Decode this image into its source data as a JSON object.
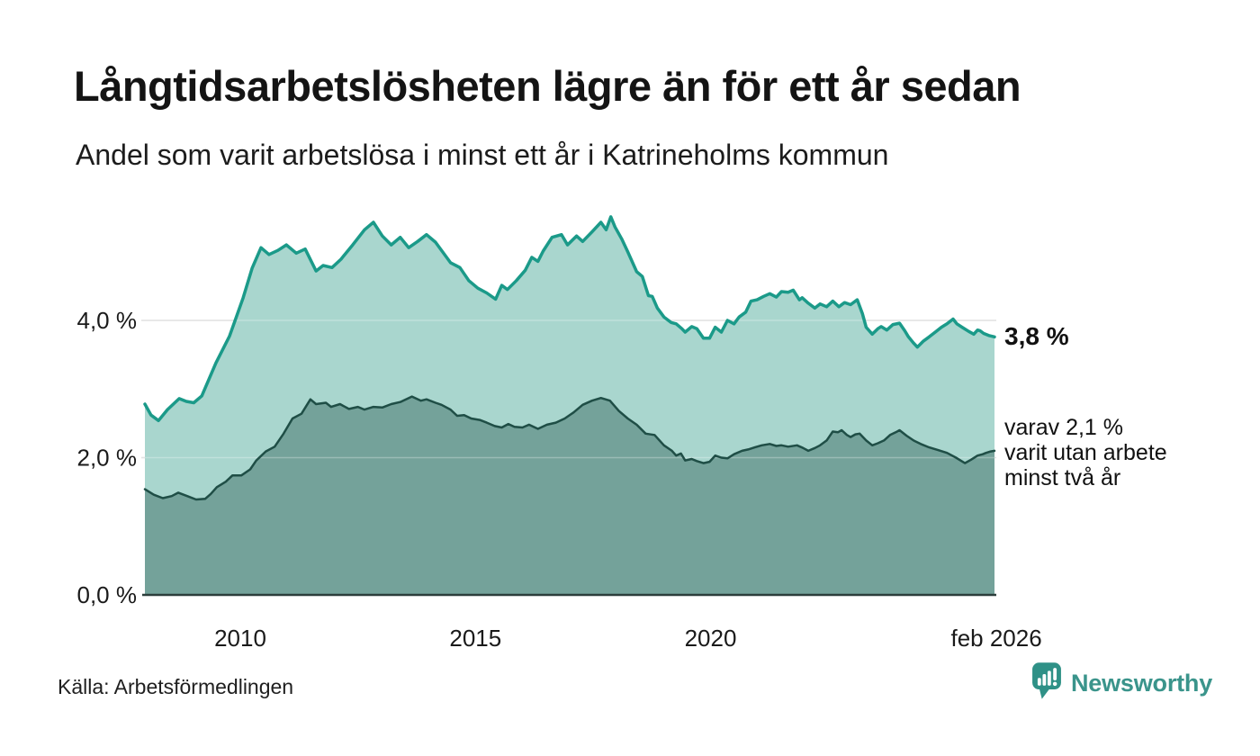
{
  "chart_data": {
    "type": "area",
    "title": "Långtidsarbetslösheten lägre än för ett år sedan",
    "subtitle": "Andel som varit arbetslösa i minst ett år i Katrineholms kommun",
    "xlabel": "",
    "ylabel": "",
    "grid": "horizontal",
    "legend_position": "none",
    "xlim": [
      2007.97,
      2026.04
    ],
    "ylim": [
      0,
      5.8
    ],
    "x_ticks": [
      {
        "label": "2010",
        "year": 2010
      },
      {
        "label": "2015",
        "year": 2015
      },
      {
        "label": "2020",
        "year": 2020
      },
      {
        "label": "feb 2026",
        "year": 2026.08
      }
    ],
    "y_ticks": [
      {
        "label": "0,0 %",
        "value": 0
      },
      {
        "label": "2,0 %",
        "value": 2
      },
      {
        "label": "4,0 %",
        "value": 4
      }
    ],
    "series": [
      {
        "name": "Andel som varit arbetslösa i minst ett år",
        "line_color": "#1b9a89",
        "fill_color": "#a9d6ce",
        "line_width": 3.5,
        "points": [
          [
            2007.97,
            2.78
          ],
          [
            2008.1,
            2.62
          ],
          [
            2008.26,
            2.54
          ],
          [
            2008.45,
            2.7
          ],
          [
            2008.7,
            2.86
          ],
          [
            2008.85,
            2.82
          ],
          [
            2009.01,
            2.8
          ],
          [
            2009.18,
            2.9
          ],
          [
            2009.48,
            3.38
          ],
          [
            2009.77,
            3.77
          ],
          [
            2010.06,
            4.33
          ],
          [
            2010.25,
            4.76
          ],
          [
            2010.44,
            5.06
          ],
          [
            2010.61,
            4.96
          ],
          [
            2010.8,
            5.02
          ],
          [
            2010.98,
            5.1
          ],
          [
            2011.19,
            4.98
          ],
          [
            2011.38,
            5.04
          ],
          [
            2011.61,
            4.72
          ],
          [
            2011.76,
            4.8
          ],
          [
            2011.95,
            4.77
          ],
          [
            2012.14,
            4.89
          ],
          [
            2012.39,
            5.1
          ],
          [
            2012.64,
            5.32
          ],
          [
            2012.83,
            5.43
          ],
          [
            2013.02,
            5.23
          ],
          [
            2013.21,
            5.1
          ],
          [
            2013.4,
            5.21
          ],
          [
            2013.58,
            5.06
          ],
          [
            2013.77,
            5.15
          ],
          [
            2013.96,
            5.25
          ],
          [
            2014.15,
            5.14
          ],
          [
            2014.47,
            4.84
          ],
          [
            2014.67,
            4.77
          ],
          [
            2014.86,
            4.58
          ],
          [
            2015.05,
            4.47
          ],
          [
            2015.24,
            4.4
          ],
          [
            2015.43,
            4.31
          ],
          [
            2015.56,
            4.51
          ],
          [
            2015.68,
            4.45
          ],
          [
            2015.87,
            4.58
          ],
          [
            2016.06,
            4.73
          ],
          [
            2016.2,
            4.92
          ],
          [
            2016.33,
            4.86
          ],
          [
            2016.44,
            5.01
          ],
          [
            2016.63,
            5.21
          ],
          [
            2016.83,
            5.25
          ],
          [
            2016.96,
            5.1
          ],
          [
            2017.15,
            5.23
          ],
          [
            2017.28,
            5.15
          ],
          [
            2017.48,
            5.29
          ],
          [
            2017.67,
            5.43
          ],
          [
            2017.78,
            5.32
          ],
          [
            2017.88,
            5.51
          ],
          [
            2017.97,
            5.36
          ],
          [
            2018.11,
            5.19
          ],
          [
            2018.24,
            5.0
          ],
          [
            2018.43,
            4.71
          ],
          [
            2018.55,
            4.64
          ],
          [
            2018.68,
            4.36
          ],
          [
            2018.76,
            4.35
          ],
          [
            2018.87,
            4.18
          ],
          [
            2019.01,
            4.05
          ],
          [
            2019.16,
            3.97
          ],
          [
            2019.27,
            3.95
          ],
          [
            2019.39,
            3.88
          ],
          [
            2019.46,
            3.83
          ],
          [
            2019.6,
            3.91
          ],
          [
            2019.71,
            3.88
          ],
          [
            2019.85,
            3.74
          ],
          [
            2019.98,
            3.74
          ],
          [
            2020.1,
            3.9
          ],
          [
            2020.23,
            3.83
          ],
          [
            2020.36,
            4.0
          ],
          [
            2020.5,
            3.95
          ],
          [
            2020.61,
            4.05
          ],
          [
            2020.75,
            4.12
          ],
          [
            2020.86,
            4.28
          ],
          [
            2020.99,
            4.3
          ],
          [
            2021.13,
            4.35
          ],
          [
            2021.26,
            4.39
          ],
          [
            2021.4,
            4.34
          ],
          [
            2021.51,
            4.42
          ],
          [
            2021.65,
            4.41
          ],
          [
            2021.76,
            4.44
          ],
          [
            2021.89,
            4.3
          ],
          [
            2021.95,
            4.33
          ],
          [
            2022.08,
            4.25
          ],
          [
            2022.22,
            4.18
          ],
          [
            2022.33,
            4.24
          ],
          [
            2022.47,
            4.2
          ],
          [
            2022.6,
            4.28
          ],
          [
            2022.73,
            4.2
          ],
          [
            2022.85,
            4.26
          ],
          [
            2022.98,
            4.23
          ],
          [
            2023.12,
            4.3
          ],
          [
            2023.23,
            4.1
          ],
          [
            2023.31,
            3.9
          ],
          [
            2023.44,
            3.8
          ],
          [
            2023.56,
            3.88
          ],
          [
            2023.63,
            3.91
          ],
          [
            2023.75,
            3.86
          ],
          [
            2023.88,
            3.94
          ],
          [
            2024.02,
            3.96
          ],
          [
            2024.13,
            3.85
          ],
          [
            2024.21,
            3.76
          ],
          [
            2024.32,
            3.67
          ],
          [
            2024.4,
            3.61
          ],
          [
            2024.53,
            3.7
          ],
          [
            2024.65,
            3.76
          ],
          [
            2024.78,
            3.83
          ],
          [
            2024.91,
            3.9
          ],
          [
            2025.03,
            3.95
          ],
          [
            2025.16,
            4.02
          ],
          [
            2025.24,
            3.95
          ],
          [
            2025.35,
            3.9
          ],
          [
            2025.49,
            3.84
          ],
          [
            2025.6,
            3.8
          ],
          [
            2025.68,
            3.86
          ],
          [
            2025.73,
            3.85
          ],
          [
            2025.81,
            3.81
          ],
          [
            2025.92,
            3.78
          ],
          [
            2026.04,
            3.76
          ]
        ]
      },
      {
        "name": "varav varit utan arbete minst två år",
        "line_color": "#1f4e46",
        "fill_color": "#74a29a",
        "line_width": 2.5,
        "points": [
          [
            2007.97,
            1.54
          ],
          [
            2008.16,
            1.46
          ],
          [
            2008.35,
            1.41
          ],
          [
            2008.54,
            1.44
          ],
          [
            2008.68,
            1.49
          ],
          [
            2008.87,
            1.44
          ],
          [
            2009.06,
            1.39
          ],
          [
            2009.25,
            1.4
          ],
          [
            2009.37,
            1.47
          ],
          [
            2009.5,
            1.57
          ],
          [
            2009.69,
            1.65
          ],
          [
            2009.83,
            1.74
          ],
          [
            2010.02,
            1.74
          ],
          [
            2010.21,
            1.83
          ],
          [
            2010.34,
            1.96
          ],
          [
            2010.54,
            2.09
          ],
          [
            2010.73,
            2.16
          ],
          [
            2010.92,
            2.35
          ],
          [
            2011.11,
            2.57
          ],
          [
            2011.3,
            2.64
          ],
          [
            2011.49,
            2.85
          ],
          [
            2011.61,
            2.78
          ],
          [
            2011.82,
            2.8
          ],
          [
            2011.93,
            2.74
          ],
          [
            2012.12,
            2.78
          ],
          [
            2012.31,
            2.71
          ],
          [
            2012.5,
            2.74
          ],
          [
            2012.64,
            2.7
          ],
          [
            2012.83,
            2.74
          ],
          [
            2013.02,
            2.73
          ],
          [
            2013.21,
            2.78
          ],
          [
            2013.4,
            2.81
          ],
          [
            2013.65,
            2.89
          ],
          [
            2013.84,
            2.83
          ],
          [
            2013.96,
            2.85
          ],
          [
            2014.15,
            2.8
          ],
          [
            2014.28,
            2.77
          ],
          [
            2014.47,
            2.7
          ],
          [
            2014.61,
            2.61
          ],
          [
            2014.76,
            2.62
          ],
          [
            2014.91,
            2.57
          ],
          [
            2015.09,
            2.55
          ],
          [
            2015.24,
            2.51
          ],
          [
            2015.41,
            2.46
          ],
          [
            2015.56,
            2.44
          ],
          [
            2015.7,
            2.49
          ],
          [
            2015.83,
            2.45
          ],
          [
            2016.0,
            2.44
          ],
          [
            2016.14,
            2.48
          ],
          [
            2016.33,
            2.42
          ],
          [
            2016.52,
            2.48
          ],
          [
            2016.71,
            2.51
          ],
          [
            2016.9,
            2.57
          ],
          [
            2017.09,
            2.66
          ],
          [
            2017.28,
            2.77
          ],
          [
            2017.48,
            2.83
          ],
          [
            2017.67,
            2.87
          ],
          [
            2017.86,
            2.83
          ],
          [
            2018.05,
            2.68
          ],
          [
            2018.24,
            2.57
          ],
          [
            2018.43,
            2.48
          ],
          [
            2018.62,
            2.35
          ],
          [
            2018.81,
            2.33
          ],
          [
            2019.01,
            2.18
          ],
          [
            2019.18,
            2.1
          ],
          [
            2019.27,
            2.03
          ],
          [
            2019.37,
            2.06
          ],
          [
            2019.46,
            1.96
          ],
          [
            2019.6,
            1.98
          ],
          [
            2019.71,
            1.95
          ],
          [
            2019.85,
            1.92
          ],
          [
            2019.98,
            1.94
          ],
          [
            2020.1,
            2.03
          ],
          [
            2020.23,
            2.0
          ],
          [
            2020.36,
            1.99
          ],
          [
            2020.5,
            2.05
          ],
          [
            2020.67,
            2.1
          ],
          [
            2020.8,
            2.12
          ],
          [
            2020.94,
            2.15
          ],
          [
            2021.09,
            2.18
          ],
          [
            2021.26,
            2.2
          ],
          [
            2021.4,
            2.17
          ],
          [
            2021.51,
            2.18
          ],
          [
            2021.65,
            2.16
          ],
          [
            2021.84,
            2.18
          ],
          [
            2021.97,
            2.14
          ],
          [
            2022.08,
            2.1
          ],
          [
            2022.22,
            2.14
          ],
          [
            2022.33,
            2.18
          ],
          [
            2022.47,
            2.25
          ],
          [
            2022.6,
            2.38
          ],
          [
            2022.71,
            2.37
          ],
          [
            2022.79,
            2.4
          ],
          [
            2022.9,
            2.33
          ],
          [
            2022.98,
            2.3
          ],
          [
            2023.08,
            2.34
          ],
          [
            2023.17,
            2.35
          ],
          [
            2023.31,
            2.25
          ],
          [
            2023.44,
            2.18
          ],
          [
            2023.56,
            2.21
          ],
          [
            2023.69,
            2.25
          ],
          [
            2023.82,
            2.33
          ],
          [
            2023.94,
            2.37
          ],
          [
            2024.02,
            2.4
          ],
          [
            2024.17,
            2.32
          ],
          [
            2024.32,
            2.25
          ],
          [
            2024.47,
            2.2
          ],
          [
            2024.65,
            2.15
          ],
          [
            2024.84,
            2.11
          ],
          [
            2025.03,
            2.07
          ],
          [
            2025.22,
            2.0
          ],
          [
            2025.41,
            1.92
          ],
          [
            2025.54,
            1.97
          ],
          [
            2025.68,
            2.03
          ],
          [
            2025.79,
            2.05
          ],
          [
            2025.86,
            2.07
          ],
          [
            2025.96,
            2.09
          ],
          [
            2026.04,
            2.1
          ]
        ]
      }
    ],
    "annotations": {
      "latest_total": "3,8 %",
      "detail_lines": [
        "varav 2,1 %",
        "varit utan arbete",
        "minst två år"
      ]
    },
    "colors": {
      "gridline": "#d8d8d8",
      "baseline": "#2c3e3b",
      "text": "#1a1a1a"
    }
  },
  "footer": {
    "source": "Källa: Arbetsförmedlingen",
    "brand": "Newsworthy",
    "brand_color": "#3a948b",
    "brand_icon_color": "#2f9187"
  }
}
